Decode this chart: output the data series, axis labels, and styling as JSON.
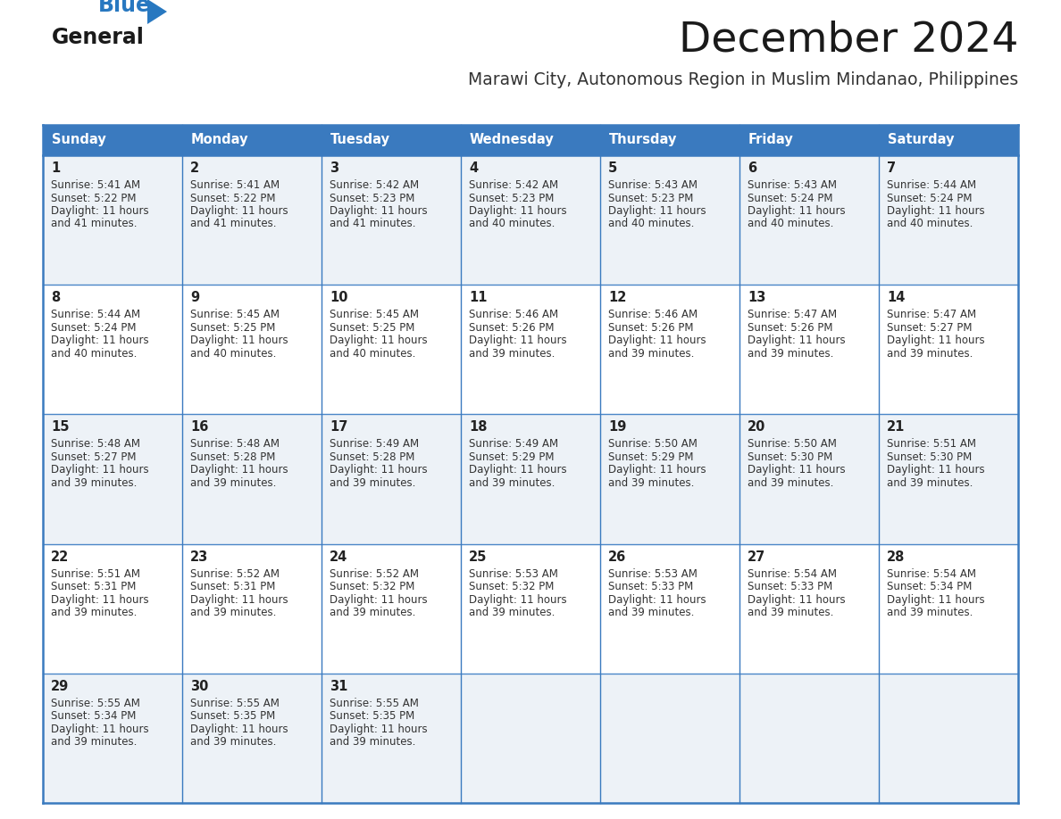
{
  "title": "December 2024",
  "subtitle": "Marawi City, Autonomous Region in Muslim Mindanao, Philippines",
  "header_color": "#3a7abf",
  "header_text_color": "#ffffff",
  "cell_bg_even": "#edf2f7",
  "cell_bg_odd": "#ffffff",
  "border_color": "#3a7abf",
  "row_border_color": "#4a86c8",
  "day_headers": [
    "Sunday",
    "Monday",
    "Tuesday",
    "Wednesday",
    "Thursday",
    "Friday",
    "Saturday"
  ],
  "days": [
    {
      "day": 1,
      "col": 0,
      "row": 0,
      "sunrise": "5:41 AM",
      "sunset": "5:22 PM",
      "daylight": "11 hours and 41 minutes."
    },
    {
      "day": 2,
      "col": 1,
      "row": 0,
      "sunrise": "5:41 AM",
      "sunset": "5:22 PM",
      "daylight": "11 hours and 41 minutes."
    },
    {
      "day": 3,
      "col": 2,
      "row": 0,
      "sunrise": "5:42 AM",
      "sunset": "5:23 PM",
      "daylight": "11 hours and 41 minutes."
    },
    {
      "day": 4,
      "col": 3,
      "row": 0,
      "sunrise": "5:42 AM",
      "sunset": "5:23 PM",
      "daylight": "11 hours and 40 minutes."
    },
    {
      "day": 5,
      "col": 4,
      "row": 0,
      "sunrise": "5:43 AM",
      "sunset": "5:23 PM",
      "daylight": "11 hours and 40 minutes."
    },
    {
      "day": 6,
      "col": 5,
      "row": 0,
      "sunrise": "5:43 AM",
      "sunset": "5:24 PM",
      "daylight": "11 hours and 40 minutes."
    },
    {
      "day": 7,
      "col": 6,
      "row": 0,
      "sunrise": "5:44 AM",
      "sunset": "5:24 PM",
      "daylight": "11 hours and 40 minutes."
    },
    {
      "day": 8,
      "col": 0,
      "row": 1,
      "sunrise": "5:44 AM",
      "sunset": "5:24 PM",
      "daylight": "11 hours and 40 minutes."
    },
    {
      "day": 9,
      "col": 1,
      "row": 1,
      "sunrise": "5:45 AM",
      "sunset": "5:25 PM",
      "daylight": "11 hours and 40 minutes."
    },
    {
      "day": 10,
      "col": 2,
      "row": 1,
      "sunrise": "5:45 AM",
      "sunset": "5:25 PM",
      "daylight": "11 hours and 40 minutes."
    },
    {
      "day": 11,
      "col": 3,
      "row": 1,
      "sunrise": "5:46 AM",
      "sunset": "5:26 PM",
      "daylight": "11 hours and 39 minutes."
    },
    {
      "day": 12,
      "col": 4,
      "row": 1,
      "sunrise": "5:46 AM",
      "sunset": "5:26 PM",
      "daylight": "11 hours and 39 minutes."
    },
    {
      "day": 13,
      "col": 5,
      "row": 1,
      "sunrise": "5:47 AM",
      "sunset": "5:26 PM",
      "daylight": "11 hours and 39 minutes."
    },
    {
      "day": 14,
      "col": 6,
      "row": 1,
      "sunrise": "5:47 AM",
      "sunset": "5:27 PM",
      "daylight": "11 hours and 39 minutes."
    },
    {
      "day": 15,
      "col": 0,
      "row": 2,
      "sunrise": "5:48 AM",
      "sunset": "5:27 PM",
      "daylight": "11 hours and 39 minutes."
    },
    {
      "day": 16,
      "col": 1,
      "row": 2,
      "sunrise": "5:48 AM",
      "sunset": "5:28 PM",
      "daylight": "11 hours and 39 minutes."
    },
    {
      "day": 17,
      "col": 2,
      "row": 2,
      "sunrise": "5:49 AM",
      "sunset": "5:28 PM",
      "daylight": "11 hours and 39 minutes."
    },
    {
      "day": 18,
      "col": 3,
      "row": 2,
      "sunrise": "5:49 AM",
      "sunset": "5:29 PM",
      "daylight": "11 hours and 39 minutes."
    },
    {
      "day": 19,
      "col": 4,
      "row": 2,
      "sunrise": "5:50 AM",
      "sunset": "5:29 PM",
      "daylight": "11 hours and 39 minutes."
    },
    {
      "day": 20,
      "col": 5,
      "row": 2,
      "sunrise": "5:50 AM",
      "sunset": "5:30 PM",
      "daylight": "11 hours and 39 minutes."
    },
    {
      "day": 21,
      "col": 6,
      "row": 2,
      "sunrise": "5:51 AM",
      "sunset": "5:30 PM",
      "daylight": "11 hours and 39 minutes."
    },
    {
      "day": 22,
      "col": 0,
      "row": 3,
      "sunrise": "5:51 AM",
      "sunset": "5:31 PM",
      "daylight": "11 hours and 39 minutes."
    },
    {
      "day": 23,
      "col": 1,
      "row": 3,
      "sunrise": "5:52 AM",
      "sunset": "5:31 PM",
      "daylight": "11 hours and 39 minutes."
    },
    {
      "day": 24,
      "col": 2,
      "row": 3,
      "sunrise": "5:52 AM",
      "sunset": "5:32 PM",
      "daylight": "11 hours and 39 minutes."
    },
    {
      "day": 25,
      "col": 3,
      "row": 3,
      "sunrise": "5:53 AM",
      "sunset": "5:32 PM",
      "daylight": "11 hours and 39 minutes."
    },
    {
      "day": 26,
      "col": 4,
      "row": 3,
      "sunrise": "5:53 AM",
      "sunset": "5:33 PM",
      "daylight": "11 hours and 39 minutes."
    },
    {
      "day": 27,
      "col": 5,
      "row": 3,
      "sunrise": "5:54 AM",
      "sunset": "5:33 PM",
      "daylight": "11 hours and 39 minutes."
    },
    {
      "day": 28,
      "col": 6,
      "row": 3,
      "sunrise": "5:54 AM",
      "sunset": "5:34 PM",
      "daylight": "11 hours and 39 minutes."
    },
    {
      "day": 29,
      "col": 0,
      "row": 4,
      "sunrise": "5:55 AM",
      "sunset": "5:34 PM",
      "daylight": "11 hours and 39 minutes."
    },
    {
      "day": 30,
      "col": 1,
      "row": 4,
      "sunrise": "5:55 AM",
      "sunset": "5:35 PM",
      "daylight": "11 hours and 39 minutes."
    },
    {
      "day": 31,
      "col": 2,
      "row": 4,
      "sunrise": "5:55 AM",
      "sunset": "5:35 PM",
      "daylight": "11 hours and 39 minutes."
    }
  ],
  "num_rows": 5,
  "logo_general_color": "#1a1a1a",
  "logo_blue_color": "#2878c0",
  "logo_triangle_color": "#2878c0",
  "title_color": "#1a1a1a",
  "subtitle_color": "#333333",
  "day_number_color": "#222222",
  "info_text_color": "#333333"
}
